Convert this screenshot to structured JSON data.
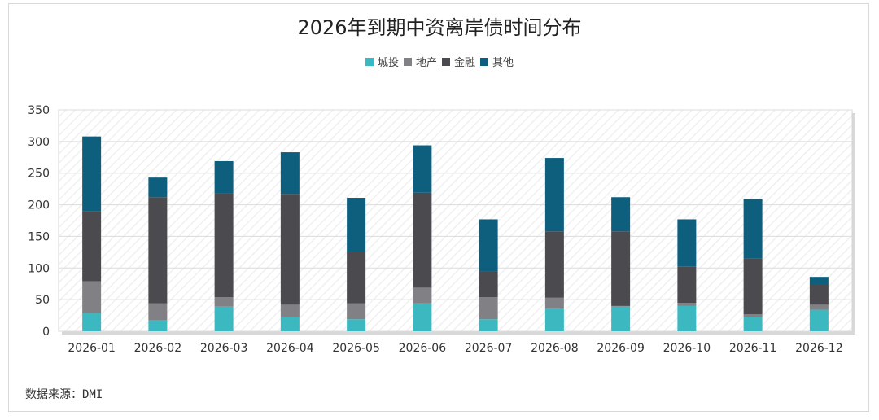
{
  "title": "2026年到期中资离岸债时间分布",
  "source": "数据来源：DMI",
  "colors": {
    "城投": "#3cb8c0",
    "地产": "#808085",
    "金融": "#4a4a4f",
    "其他": "#0e5f7e"
  },
  "chart_data": {
    "type": "bar",
    "stacked": true,
    "title": "2026年到期中资离岸债时间分布",
    "xlabel": "",
    "ylabel": "",
    "ylim": [
      0,
      350
    ],
    "yticks": [
      0,
      50,
      100,
      150,
      200,
      250,
      300,
      350
    ],
    "grid": true,
    "legend_position": "top",
    "categories": [
      "2026-01",
      "2026-02",
      "2026-03",
      "2026-04",
      "2026-05",
      "2026-06",
      "2026-07",
      "2026-08",
      "2026-09",
      "2026-10",
      "2026-11",
      "2026-12"
    ],
    "series": [
      {
        "name": "城投",
        "values": [
          29,
          18,
          39,
          22,
          19,
          44,
          19,
          36,
          39,
          40,
          22,
          34
        ]
      },
      {
        "name": "地产",
        "values": [
          50,
          26,
          15,
          20,
          25,
          25,
          35,
          17,
          1,
          5,
          5,
          8
        ]
      },
      {
        "name": "金融",
        "values": [
          111,
          168,
          164,
          175,
          81,
          150,
          40,
          105,
          118,
          57,
          88,
          32
        ]
      },
      {
        "name": "其他",
        "values": [
          118,
          31,
          51,
          66,
          86,
          75,
          83,
          116,
          54,
          75,
          94,
          12
        ]
      }
    ]
  }
}
